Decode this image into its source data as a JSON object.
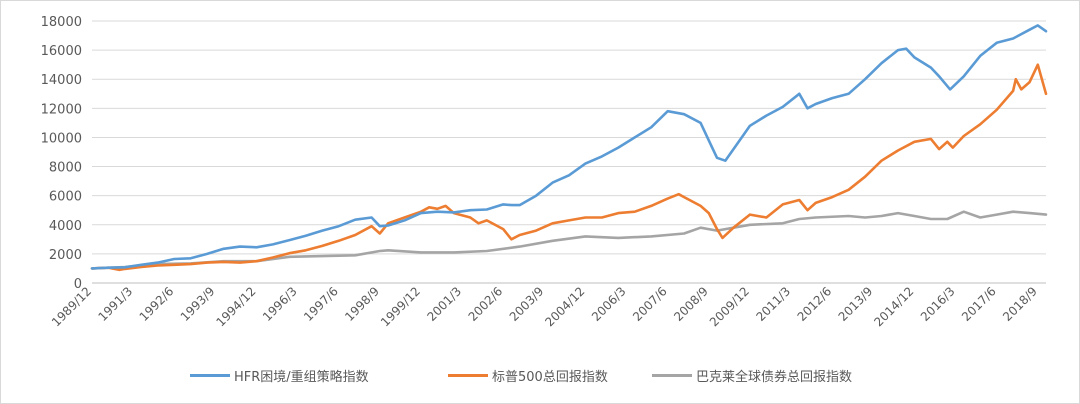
{
  "chart_data": {
    "type": "line",
    "title": "",
    "xlabel": "",
    "ylabel": "",
    "ylim": [
      0,
      18000
    ],
    "yticks": [
      0,
      2000,
      4000,
      6000,
      8000,
      10000,
      12000,
      14000,
      16000,
      18000
    ],
    "ytick_labels": [
      "0",
      "2000",
      "4000",
      "6000",
      "8000",
      "10000",
      "12000",
      "14000",
      "16000",
      "18000"
    ],
    "xtick_labels": [
      "1989/12",
      "1991/3",
      "1992/6",
      "1993/9",
      "1994/12",
      "1996/3",
      "1997/6",
      "1998/9",
      "1999/12",
      "2001/3",
      "2002/6",
      "2003/9",
      "2004/12",
      "2006/3",
      "2007/6",
      "2008/9",
      "2009/12",
      "2011/3",
      "2012/6",
      "2013/9",
      "2014/12",
      "2016/3",
      "2017/6",
      "2018/9"
    ],
    "xlim": [
      "1989/12",
      "2018/12"
    ],
    "grid": "horizontal",
    "legend_position": "bottom",
    "series": [
      {
        "name": "HFR困境/重组策略指数",
        "color": "#5B9BD5",
        "points": [
          [
            "1989/12",
            1000
          ],
          [
            "1990/6",
            1050
          ],
          [
            "1990/12",
            1080
          ],
          [
            "1991/6",
            1250
          ],
          [
            "1991/12",
            1400
          ],
          [
            "1992/6",
            1650
          ],
          [
            "1992/12",
            1700
          ],
          [
            "1993/6",
            2000
          ],
          [
            "1993/12",
            2350
          ],
          [
            "1994/6",
            2500
          ],
          [
            "1994/12",
            2450
          ],
          [
            "1995/6",
            2650
          ],
          [
            "1995/12",
            2950
          ],
          [
            "1996/6",
            3250
          ],
          [
            "1996/12",
            3600
          ],
          [
            "1997/6",
            3900
          ],
          [
            "1997/12",
            4350
          ],
          [
            "1998/6",
            4500
          ],
          [
            "1998/9",
            3900
          ],
          [
            "1998/12",
            3950
          ],
          [
            "1999/6",
            4300
          ],
          [
            "1999/12",
            4800
          ],
          [
            "2000/6",
            4900
          ],
          [
            "2000/12",
            4850
          ],
          [
            "2001/6",
            5000
          ],
          [
            "2001/12",
            5050
          ],
          [
            "2002/6",
            5400
          ],
          [
            "2002/9",
            5350
          ],
          [
            "2002/12",
            5350
          ],
          [
            "2003/6",
            6000
          ],
          [
            "2003/12",
            6900
          ],
          [
            "2004/6",
            7400
          ],
          [
            "2004/12",
            8200
          ],
          [
            "2005/6",
            8700
          ],
          [
            "2005/12",
            9300
          ],
          [
            "2006/6",
            10000
          ],
          [
            "2006/12",
            10700
          ],
          [
            "2007/6",
            11800
          ],
          [
            "2007/12",
            11600
          ],
          [
            "2008/6",
            11000
          ],
          [
            "2008/9",
            9800
          ],
          [
            "2008/12",
            8600
          ],
          [
            "2009/3",
            8400
          ],
          [
            "2009/6",
            9200
          ],
          [
            "2009/12",
            10800
          ],
          [
            "2010/6",
            11500
          ],
          [
            "2010/12",
            12100
          ],
          [
            "2011/6",
            13000
          ],
          [
            "2011/9",
            12000
          ],
          [
            "2011/12",
            12300
          ],
          [
            "2012/6",
            12700
          ],
          [
            "2012/12",
            13000
          ],
          [
            "2013/6",
            14000
          ],
          [
            "2013/12",
            15100
          ],
          [
            "2014/6",
            16000
          ],
          [
            "2014/9",
            16100
          ],
          [
            "2014/12",
            15500
          ],
          [
            "2015/6",
            14800
          ],
          [
            "2015/9",
            14200
          ],
          [
            "2016/1",
            13300
          ],
          [
            "2016/6",
            14200
          ],
          [
            "2016/12",
            15600
          ],
          [
            "2017/6",
            16500
          ],
          [
            "2017/12",
            16800
          ],
          [
            "2018/6",
            17400
          ],
          [
            "2018/9",
            17700
          ],
          [
            "2018/12",
            17300
          ]
        ]
      },
      {
        "name": "标普500总回报指数",
        "color": "#ED7D31",
        "points": [
          [
            "1989/12",
            1000
          ],
          [
            "1990/6",
            1050
          ],
          [
            "1990/10",
            900
          ],
          [
            "1990/12",
            970
          ],
          [
            "1991/6",
            1100
          ],
          [
            "1991/12",
            1200
          ],
          [
            "1992/6",
            1250
          ],
          [
            "1992/12",
            1300
          ],
          [
            "1993/6",
            1400
          ],
          [
            "1993/12",
            1450
          ],
          [
            "1994/6",
            1400
          ],
          [
            "1994/12",
            1500
          ],
          [
            "1995/6",
            1750
          ],
          [
            "1995/12",
            2050
          ],
          [
            "1996/6",
            2250
          ],
          [
            "1996/12",
            2550
          ],
          [
            "1997/6",
            2900
          ],
          [
            "1997/12",
            3300
          ],
          [
            "1998/6",
            3900
          ],
          [
            "1998/9",
            3400
          ],
          [
            "1998/12",
            4100
          ],
          [
            "1999/6",
            4500
          ],
          [
            "1999/12",
            4900
          ],
          [
            "2000/3",
            5200
          ],
          [
            "2000/6",
            5100
          ],
          [
            "2000/9",
            5300
          ],
          [
            "2000/12",
            4800
          ],
          [
            "2001/6",
            4500
          ],
          [
            "2001/9",
            4100
          ],
          [
            "2001/12",
            4300
          ],
          [
            "2002/6",
            3700
          ],
          [
            "2002/9",
            3000
          ],
          [
            "2002/12",
            3300
          ],
          [
            "2003/6",
            3600
          ],
          [
            "2003/12",
            4100
          ],
          [
            "2004/6",
            4300
          ],
          [
            "2004/12",
            4500
          ],
          [
            "2005/6",
            4500
          ],
          [
            "2005/12",
            4800
          ],
          [
            "2006/6",
            4900
          ],
          [
            "2006/12",
            5300
          ],
          [
            "2007/6",
            5800
          ],
          [
            "2007/10",
            6100
          ],
          [
            "2007/12",
            5900
          ],
          [
            "2008/6",
            5300
          ],
          [
            "2008/9",
            4800
          ],
          [
            "2008/12",
            3700
          ],
          [
            "2009/2",
            3100
          ],
          [
            "2009/6",
            3800
          ],
          [
            "2009/12",
            4700
          ],
          [
            "2010/6",
            4500
          ],
          [
            "2010/12",
            5400
          ],
          [
            "2011/6",
            5700
          ],
          [
            "2011/9",
            5000
          ],
          [
            "2011/12",
            5500
          ],
          [
            "2012/6",
            5900
          ],
          [
            "2012/12",
            6400
          ],
          [
            "2013/6",
            7300
          ],
          [
            "2013/12",
            8400
          ],
          [
            "2014/6",
            9100
          ],
          [
            "2014/12",
            9700
          ],
          [
            "2015/6",
            9900
          ],
          [
            "2015/9",
            9200
          ],
          [
            "2015/12",
            9700
          ],
          [
            "2016/2",
            9300
          ],
          [
            "2016/6",
            10100
          ],
          [
            "2016/12",
            10900
          ],
          [
            "2017/6",
            11900
          ],
          [
            "2017/12",
            13200
          ],
          [
            "2018/1",
            14000
          ],
          [
            "2018/3",
            13300
          ],
          [
            "2018/6",
            13800
          ],
          [
            "2018/9",
            15000
          ],
          [
            "2018/12",
            13000
          ]
        ]
      },
      {
        "name": "巴克莱全球债券总回报指数",
        "color": "#A5A5A5",
        "points": [
          [
            "1989/12",
            1000
          ],
          [
            "1990/12",
            1100
          ],
          [
            "1991/12",
            1300
          ],
          [
            "1992/12",
            1350
          ],
          [
            "1993/12",
            1500
          ],
          [
            "1994/12",
            1500
          ],
          [
            "1995/12",
            1800
          ],
          [
            "1996/12",
            1850
          ],
          [
            "1997/12",
            1900
          ],
          [
            "1998/9",
            2200
          ],
          [
            "1998/12",
            2250
          ],
          [
            "1999/12",
            2100
          ],
          [
            "2000/12",
            2100
          ],
          [
            "2001/12",
            2200
          ],
          [
            "2002/12",
            2500
          ],
          [
            "2003/12",
            2900
          ],
          [
            "2004/12",
            3200
          ],
          [
            "2005/12",
            3100
          ],
          [
            "2006/12",
            3200
          ],
          [
            "2007/12",
            3400
          ],
          [
            "2008/6",
            3800
          ],
          [
            "2008/12",
            3600
          ],
          [
            "2009/6",
            3800
          ],
          [
            "2009/12",
            4000
          ],
          [
            "2010/12",
            4100
          ],
          [
            "2011/6",
            4400
          ],
          [
            "2011/12",
            4500
          ],
          [
            "2012/12",
            4600
          ],
          [
            "2013/6",
            4500
          ],
          [
            "2013/12",
            4600
          ],
          [
            "2014/6",
            4800
          ],
          [
            "2014/12",
            4600
          ],
          [
            "2015/6",
            4400
          ],
          [
            "2015/12",
            4400
          ],
          [
            "2016/6",
            4900
          ],
          [
            "2016/12",
            4500
          ],
          [
            "2017/6",
            4700
          ],
          [
            "2017/12",
            4900
          ],
          [
            "2018/6",
            4800
          ],
          [
            "2018/12",
            4700
          ]
        ]
      }
    ]
  }
}
